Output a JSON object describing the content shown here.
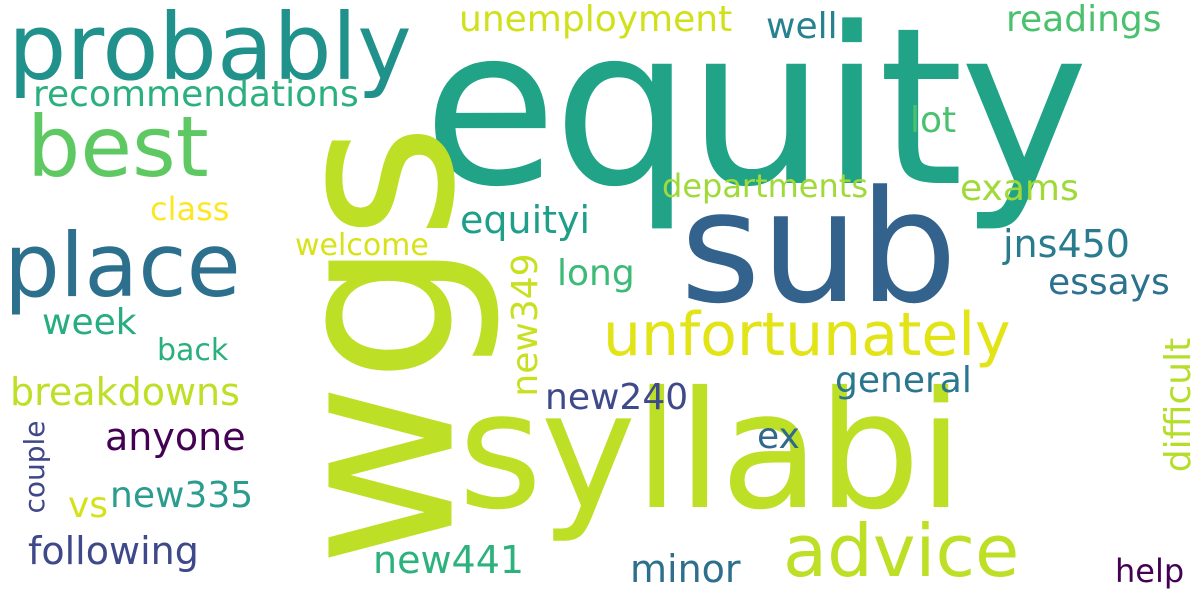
{
  "words": [
    {
      "text": "equity",
      "color": "#20a386"
    },
    {
      "text": "wgs",
      "color": "#bddf26"
    },
    {
      "text": "syllabi",
      "color": "#bddf26"
    },
    {
      "text": "sub",
      "color": "#33638d"
    },
    {
      "text": "probably",
      "color": "#21918c"
    },
    {
      "text": "place",
      "color": "#2d708e"
    },
    {
      "text": "best",
      "color": "#5ec962"
    },
    {
      "text": "advice",
      "color": "#bddf26"
    },
    {
      "text": "unfortunately",
      "color": "#e2e418"
    },
    {
      "text": "recommendations",
      "color": "#2ab07f"
    },
    {
      "text": "unemployment",
      "color": "#d0e11c"
    },
    {
      "text": "readings",
      "color": "#4ac16d"
    },
    {
      "text": "well",
      "color": "#26828e"
    },
    {
      "text": "lot",
      "color": "#4ac16d"
    },
    {
      "text": "departments",
      "color": "#a0da39"
    },
    {
      "text": "exams",
      "color": "#a0da39"
    },
    {
      "text": "class",
      "color": "#fde725"
    },
    {
      "text": "equityi",
      "color": "#1f9e89"
    },
    {
      "text": "jns450",
      "color": "#287c8e"
    },
    {
      "text": "welcome",
      "color": "#d8e219"
    },
    {
      "text": "long",
      "color": "#3bbb75"
    },
    {
      "text": "essays",
      "color": "#2c728e"
    },
    {
      "text": "new349",
      "color": "#c8e020"
    },
    {
      "text": "week",
      "color": "#27ad81"
    },
    {
      "text": "back",
      "color": "#2ab07f"
    },
    {
      "text": "difficult",
      "color": "#b5de2b"
    },
    {
      "text": "general",
      "color": "#2a768e"
    },
    {
      "text": "breakdowns",
      "color": "#bddf26"
    },
    {
      "text": "new240",
      "color": "#3e4a89"
    },
    {
      "text": "anyone",
      "color": "#440154"
    },
    {
      "text": "ex",
      "color": "#31688e"
    },
    {
      "text": "couple",
      "color": "#3f4788"
    },
    {
      "text": "vs",
      "color": "#d5e21a"
    },
    {
      "text": "new335",
      "color": "#2a9d8f"
    },
    {
      "text": "following",
      "color": "#3e4989"
    },
    {
      "text": "new441",
      "color": "#2db27d"
    },
    {
      "text": "minor",
      "color": "#2e6f8e"
    },
    {
      "text": "help",
      "color": "#440154"
    }
  ]
}
